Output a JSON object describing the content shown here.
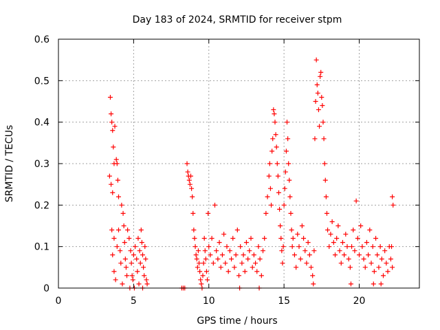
{
  "chart_data": {
    "type": "scatter",
    "title": "Day 183 of 2024, SRMTID for receiver stpm",
    "xlabel": "GPS time / hours",
    "ylabel": "SRMTID / TECUs",
    "xlim": [
      0,
      24
    ],
    "ylim": [
      0,
      0.6
    ],
    "x_ticks": [
      0,
      5,
      10,
      15,
      20
    ],
    "y_ticks": [
      0,
      0.1,
      0.2,
      0.3,
      0.4,
      0.5,
      0.6
    ],
    "grid": true,
    "marker": "+",
    "color": "#ff0000",
    "series": [
      {
        "name": "SRMTID",
        "points": [
          [
            3.45,
            0.46
          ],
          [
            3.5,
            0.42
          ],
          [
            3.55,
            0.4
          ],
          [
            3.6,
            0.38
          ],
          [
            3.65,
            0.34
          ],
          [
            3.4,
            0.27
          ],
          [
            3.5,
            0.25
          ],
          [
            3.6,
            0.23
          ],
          [
            3.7,
            0.3
          ],
          [
            3.75,
            0.39
          ],
          [
            3.85,
            0.31
          ],
          [
            3.9,
            0.3
          ],
          [
            3.95,
            0.26
          ],
          [
            4.0,
            0.22
          ],
          [
            3.55,
            0.14
          ],
          [
            3.7,
            0.12
          ],
          [
            3.6,
            0.08
          ],
          [
            3.7,
            0.04
          ],
          [
            3.8,
            0.02
          ],
          [
            3.9,
            0.1
          ],
          [
            4.0,
            0.14
          ],
          [
            4.1,
            0.09
          ],
          [
            4.15,
            0.06
          ],
          [
            4.2,
            0.2
          ],
          [
            4.3,
            0.18
          ],
          [
            4.35,
            0.15
          ],
          [
            4.4,
            0.11
          ],
          [
            4.45,
            0.07
          ],
          [
            4.5,
            0.05
          ],
          [
            4.55,
            0.03
          ],
          [
            4.6,
            0.14
          ],
          [
            4.7,
            0.12
          ],
          [
            4.8,
            0.09
          ],
          [
            4.85,
            0.06
          ],
          [
            4.9,
            0.03
          ],
          [
            4.95,
            0.02
          ],
          [
            5.0,
            0.08
          ],
          [
            5.1,
            0.1
          ],
          [
            5.2,
            0.07
          ],
          [
            5.25,
            0.04
          ],
          [
            5.3,
            0.12
          ],
          [
            5.4,
            0.09
          ],
          [
            5.45,
            0.06
          ],
          [
            5.5,
            0.14
          ],
          [
            5.55,
            0.11
          ],
          [
            5.6,
            0.08
          ],
          [
            5.65,
            0.05
          ],
          [
            5.7,
            0.03
          ],
          [
            5.75,
            0.1
          ],
          [
            5.8,
            0.07
          ],
          [
            5.85,
            0.02
          ],
          [
            5.9,
            0.01
          ],
          [
            4.25,
            0.01
          ],
          [
            4.75,
            0.0
          ],
          [
            5.05,
            0.0
          ],
          [
            5.35,
            0.01
          ],
          [
            5.6,
            0.0
          ],
          [
            8.2,
            0.0
          ],
          [
            8.3,
            0.0
          ],
          [
            8.4,
            0.0
          ],
          [
            8.55,
            0.3
          ],
          [
            8.6,
            0.28
          ],
          [
            8.65,
            0.27
          ],
          [
            8.7,
            0.26
          ],
          [
            8.75,
            0.25
          ],
          [
            8.8,
            0.27
          ],
          [
            8.85,
            0.24
          ],
          [
            8.9,
            0.22
          ],
          [
            8.95,
            0.18
          ],
          [
            9.0,
            0.14
          ],
          [
            9.05,
            0.12
          ],
          [
            9.1,
            0.1
          ],
          [
            9.15,
            0.08
          ],
          [
            9.2,
            0.07
          ],
          [
            9.25,
            0.05
          ],
          [
            9.3,
            0.09
          ],
          [
            9.35,
            0.06
          ],
          [
            9.4,
            0.04
          ],
          [
            9.45,
            0.02
          ],
          [
            9.5,
            0.01
          ],
          [
            9.55,
            0.0
          ],
          [
            9.6,
            0.03
          ],
          [
            9.65,
            0.06
          ],
          [
            9.7,
            0.12
          ],
          [
            9.75,
            0.09
          ],
          [
            9.8,
            0.07
          ],
          [
            9.85,
            0.04
          ],
          [
            9.9,
            0.02
          ],
          [
            9.95,
            0.18
          ],
          [
            10.0,
            0.1
          ],
          [
            10.1,
            0.08
          ],
          [
            10.2,
            0.12
          ],
          [
            10.3,
            0.06
          ],
          [
            10.4,
            0.2
          ],
          [
            10.5,
            0.09
          ],
          [
            10.6,
            0.07
          ],
          [
            10.7,
            0.11
          ],
          [
            10.8,
            0.05
          ],
          [
            10.9,
            0.08
          ],
          [
            11.0,
            0.13
          ],
          [
            11.1,
            0.06
          ],
          [
            11.2,
            0.1
          ],
          [
            11.3,
            0.04
          ],
          [
            11.4,
            0.09
          ],
          [
            11.5,
            0.07
          ],
          [
            11.6,
            0.12
          ],
          [
            11.7,
            0.05
          ],
          [
            11.8,
            0.08
          ],
          [
            11.9,
            0.14
          ],
          [
            12.0,
            0.03
          ],
          [
            12.1,
            0.1
          ],
          [
            12.2,
            0.06
          ],
          [
            12.3,
            0.08
          ],
          [
            12.4,
            0.04
          ],
          [
            12.5,
            0.11
          ],
          [
            12.6,
            0.07
          ],
          [
            12.7,
            0.09
          ],
          [
            12.8,
            0.12
          ],
          [
            12.9,
            0.05
          ],
          [
            13.0,
            0.08
          ],
          [
            13.1,
            0.06
          ],
          [
            13.2,
            0.04
          ],
          [
            13.3,
            0.1
          ],
          [
            13.4,
            0.07
          ],
          [
            13.5,
            0.03
          ],
          [
            13.6,
            0.09
          ],
          [
            13.7,
            0.12
          ],
          [
            13.8,
            0.18
          ],
          [
            13.9,
            0.22
          ],
          [
            14.0,
            0.27
          ],
          [
            14.05,
            0.3
          ],
          [
            14.1,
            0.24
          ],
          [
            14.15,
            0.2
          ],
          [
            14.2,
            0.33
          ],
          [
            14.25,
            0.36
          ],
          [
            14.3,
            0.43
          ],
          [
            14.35,
            0.42
          ],
          [
            14.4,
            0.4
          ],
          [
            14.45,
            0.37
          ],
          [
            14.5,
            0.34
          ],
          [
            14.55,
            0.3
          ],
          [
            14.6,
            0.27
          ],
          [
            14.65,
            0.23
          ],
          [
            14.7,
            0.19
          ],
          [
            14.75,
            0.15
          ],
          [
            14.8,
            0.12
          ],
          [
            14.85,
            0.09
          ],
          [
            14.9,
            0.06
          ],
          [
            14.95,
            0.1
          ],
          [
            15.0,
            0.2
          ],
          [
            15.05,
            0.24
          ],
          [
            15.1,
            0.28
          ],
          [
            15.15,
            0.33
          ],
          [
            15.2,
            0.4
          ],
          [
            15.25,
            0.36
          ],
          [
            15.3,
            0.3
          ],
          [
            15.35,
            0.26
          ],
          [
            15.4,
            0.22
          ],
          [
            15.45,
            0.18
          ],
          [
            15.5,
            0.14
          ],
          [
            15.55,
            0.1
          ],
          [
            15.6,
            0.12
          ],
          [
            15.7,
            0.08
          ],
          [
            15.8,
            0.05
          ],
          [
            15.9,
            0.13
          ],
          [
            16.0,
            0.1
          ],
          [
            16.1,
            0.07
          ],
          [
            16.2,
            0.15
          ],
          [
            16.3,
            0.12
          ],
          [
            16.4,
            0.09
          ],
          [
            16.5,
            0.06
          ],
          [
            16.6,
            0.11
          ],
          [
            16.7,
            0.08
          ],
          [
            16.8,
            0.05
          ],
          [
            16.9,
            0.03
          ],
          [
            17.0,
            0.09
          ],
          [
            17.05,
            0.36
          ],
          [
            17.1,
            0.45
          ],
          [
            17.15,
            0.55
          ],
          [
            17.2,
            0.49
          ],
          [
            17.25,
            0.47
          ],
          [
            17.3,
            0.43
          ],
          [
            17.35,
            0.39
          ],
          [
            17.4,
            0.51
          ],
          [
            17.45,
            0.52
          ],
          [
            17.5,
            0.46
          ],
          [
            17.55,
            0.44
          ],
          [
            17.6,
            0.4
          ],
          [
            17.65,
            0.36
          ],
          [
            17.7,
            0.3
          ],
          [
            17.75,
            0.26
          ],
          [
            17.8,
            0.22
          ],
          [
            17.85,
            0.18
          ],
          [
            17.9,
            0.14
          ],
          [
            18.0,
            0.1
          ],
          [
            18.1,
            0.13
          ],
          [
            18.2,
            0.16
          ],
          [
            18.3,
            0.11
          ],
          [
            18.4,
            0.08
          ],
          [
            18.5,
            0.12
          ],
          [
            18.6,
            0.15
          ],
          [
            18.7,
            0.09
          ],
          [
            18.8,
            0.06
          ],
          [
            18.9,
            0.11
          ],
          [
            19.0,
            0.08
          ],
          [
            19.1,
            0.13
          ],
          [
            19.2,
            0.1
          ],
          [
            19.3,
            0.07
          ],
          [
            19.4,
            0.05
          ],
          [
            19.5,
            0.1
          ],
          [
            19.6,
            0.14
          ],
          [
            19.7,
            0.09
          ],
          [
            19.8,
            0.21
          ],
          [
            19.9,
            0.12
          ],
          [
            20.0,
            0.08
          ],
          [
            20.1,
            0.15
          ],
          [
            20.2,
            0.1
          ],
          [
            20.3,
            0.07
          ],
          [
            20.4,
            0.05
          ],
          [
            20.5,
            0.11
          ],
          [
            20.6,
            0.08
          ],
          [
            20.7,
            0.14
          ],
          [
            20.8,
            0.06
          ],
          [
            20.9,
            0.1
          ],
          [
            21.0,
            0.04
          ],
          [
            21.1,
            0.12
          ],
          [
            21.2,
            0.08
          ],
          [
            21.3,
            0.05
          ],
          [
            21.4,
            0.1
          ],
          [
            21.5,
            0.07
          ],
          [
            21.6,
            0.03
          ],
          [
            21.7,
            0.09
          ],
          [
            21.8,
            0.06
          ],
          [
            21.9,
            0.04
          ],
          [
            22.0,
            0.1
          ],
          [
            22.1,
            0.07
          ],
          [
            22.2,
            0.22
          ],
          [
            22.25,
            0.2
          ],
          [
            22.2,
            0.05
          ],
          [
            22.15,
            0.1
          ],
          [
            12.05,
            0.0
          ],
          [
            13.35,
            0.0
          ],
          [
            20.95,
            0.01
          ],
          [
            21.45,
            0.01
          ],
          [
            19.45,
            0.01
          ],
          [
            16.95,
            0.01
          ]
        ]
      }
    ]
  }
}
